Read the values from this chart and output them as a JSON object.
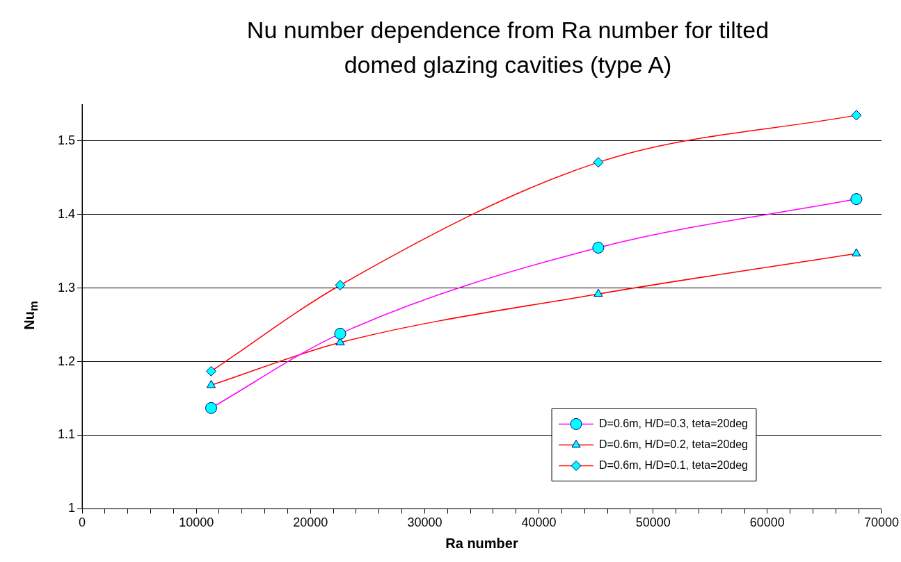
{
  "chart_data": {
    "type": "line",
    "title": "Nu number dependence from Ra number for tilted domed glazing cavities (type A)",
    "xlabel": "Ra number",
    "ylabel": "Nu$_{m}$",
    "x": [
      11300,
      22600,
      45200,
      67800
    ],
    "series": [
      {
        "name": "D=0.6m, H/D=0.3, teta=20deg",
        "color": "#ff00ff",
        "marker": "circle",
        "values": [
          1.137,
          1.238,
          1.355,
          1.421
        ]
      },
      {
        "name": "D=0.6m, H/D=0.2, teta=20deg",
        "color": "#ff0000",
        "marker": "triangle",
        "values": [
          1.168,
          1.226,
          1.292,
          1.347
        ]
      },
      {
        "name": "D=0.6m, H/D=0.1, teta=20deg",
        "color": "#ff0000",
        "marker": "diamond",
        "values": [
          1.187,
          1.304,
          1.471,
          1.535
        ]
      }
    ],
    "xlim": [
      0,
      70000
    ],
    "xticks": [
      0,
      {
        "value": 2000,
        "label": null
      },
      {
        "value": 4000,
        "label": null
      },
      {
        "value": 6000,
        "label": null
      },
      {
        "value": 8000,
        "label": null
      },
      10000,
      {
        "value": 12000,
        "label": null
      },
      {
        "value": 14000,
        "label": null
      },
      {
        "value": 16000,
        "label": null
      },
      {
        "value": 18000,
        "label": null
      },
      20000,
      {
        "value": 22000,
        "label": null
      },
      {
        "value": 24000,
        "label": null
      },
      {
        "value": 26000,
        "label": null
      },
      {
        "value": 28000,
        "label": null
      },
      30000,
      {
        "value": 32000,
        "label": null
      },
      {
        "value": 34000,
        "label": null
      },
      {
        "value": 36000,
        "label": null
      },
      {
        "value": 38000,
        "label": null
      },
      40000,
      {
        "value": 42000,
        "label": null
      },
      {
        "value": 44000,
        "label": null
      },
      {
        "value": 46000,
        "label": null
      },
      {
        "value": 48000,
        "label": null
      },
      50000,
      {
        "value": 52000,
        "label": null
      },
      {
        "value": 54000,
        "label": null
      },
      {
        "value": 56000,
        "label": null
      },
      {
        "value": 58000,
        "label": null
      },
      60000,
      {
        "value": 62000,
        "label": null
      },
      {
        "value": 64000,
        "label": null
      },
      {
        "value": 66000,
        "label": null
      },
      {
        "value": 68000,
        "label": null
      },
      70000
    ],
    "ylim": [
      1,
      1.55
    ],
    "yticks": [
      1,
      1.1,
      1.2,
      1.3,
      1.4,
      1.5
    ],
    "grid": "y",
    "legend": "bottom right",
    "line_style": "solid"
  }
}
